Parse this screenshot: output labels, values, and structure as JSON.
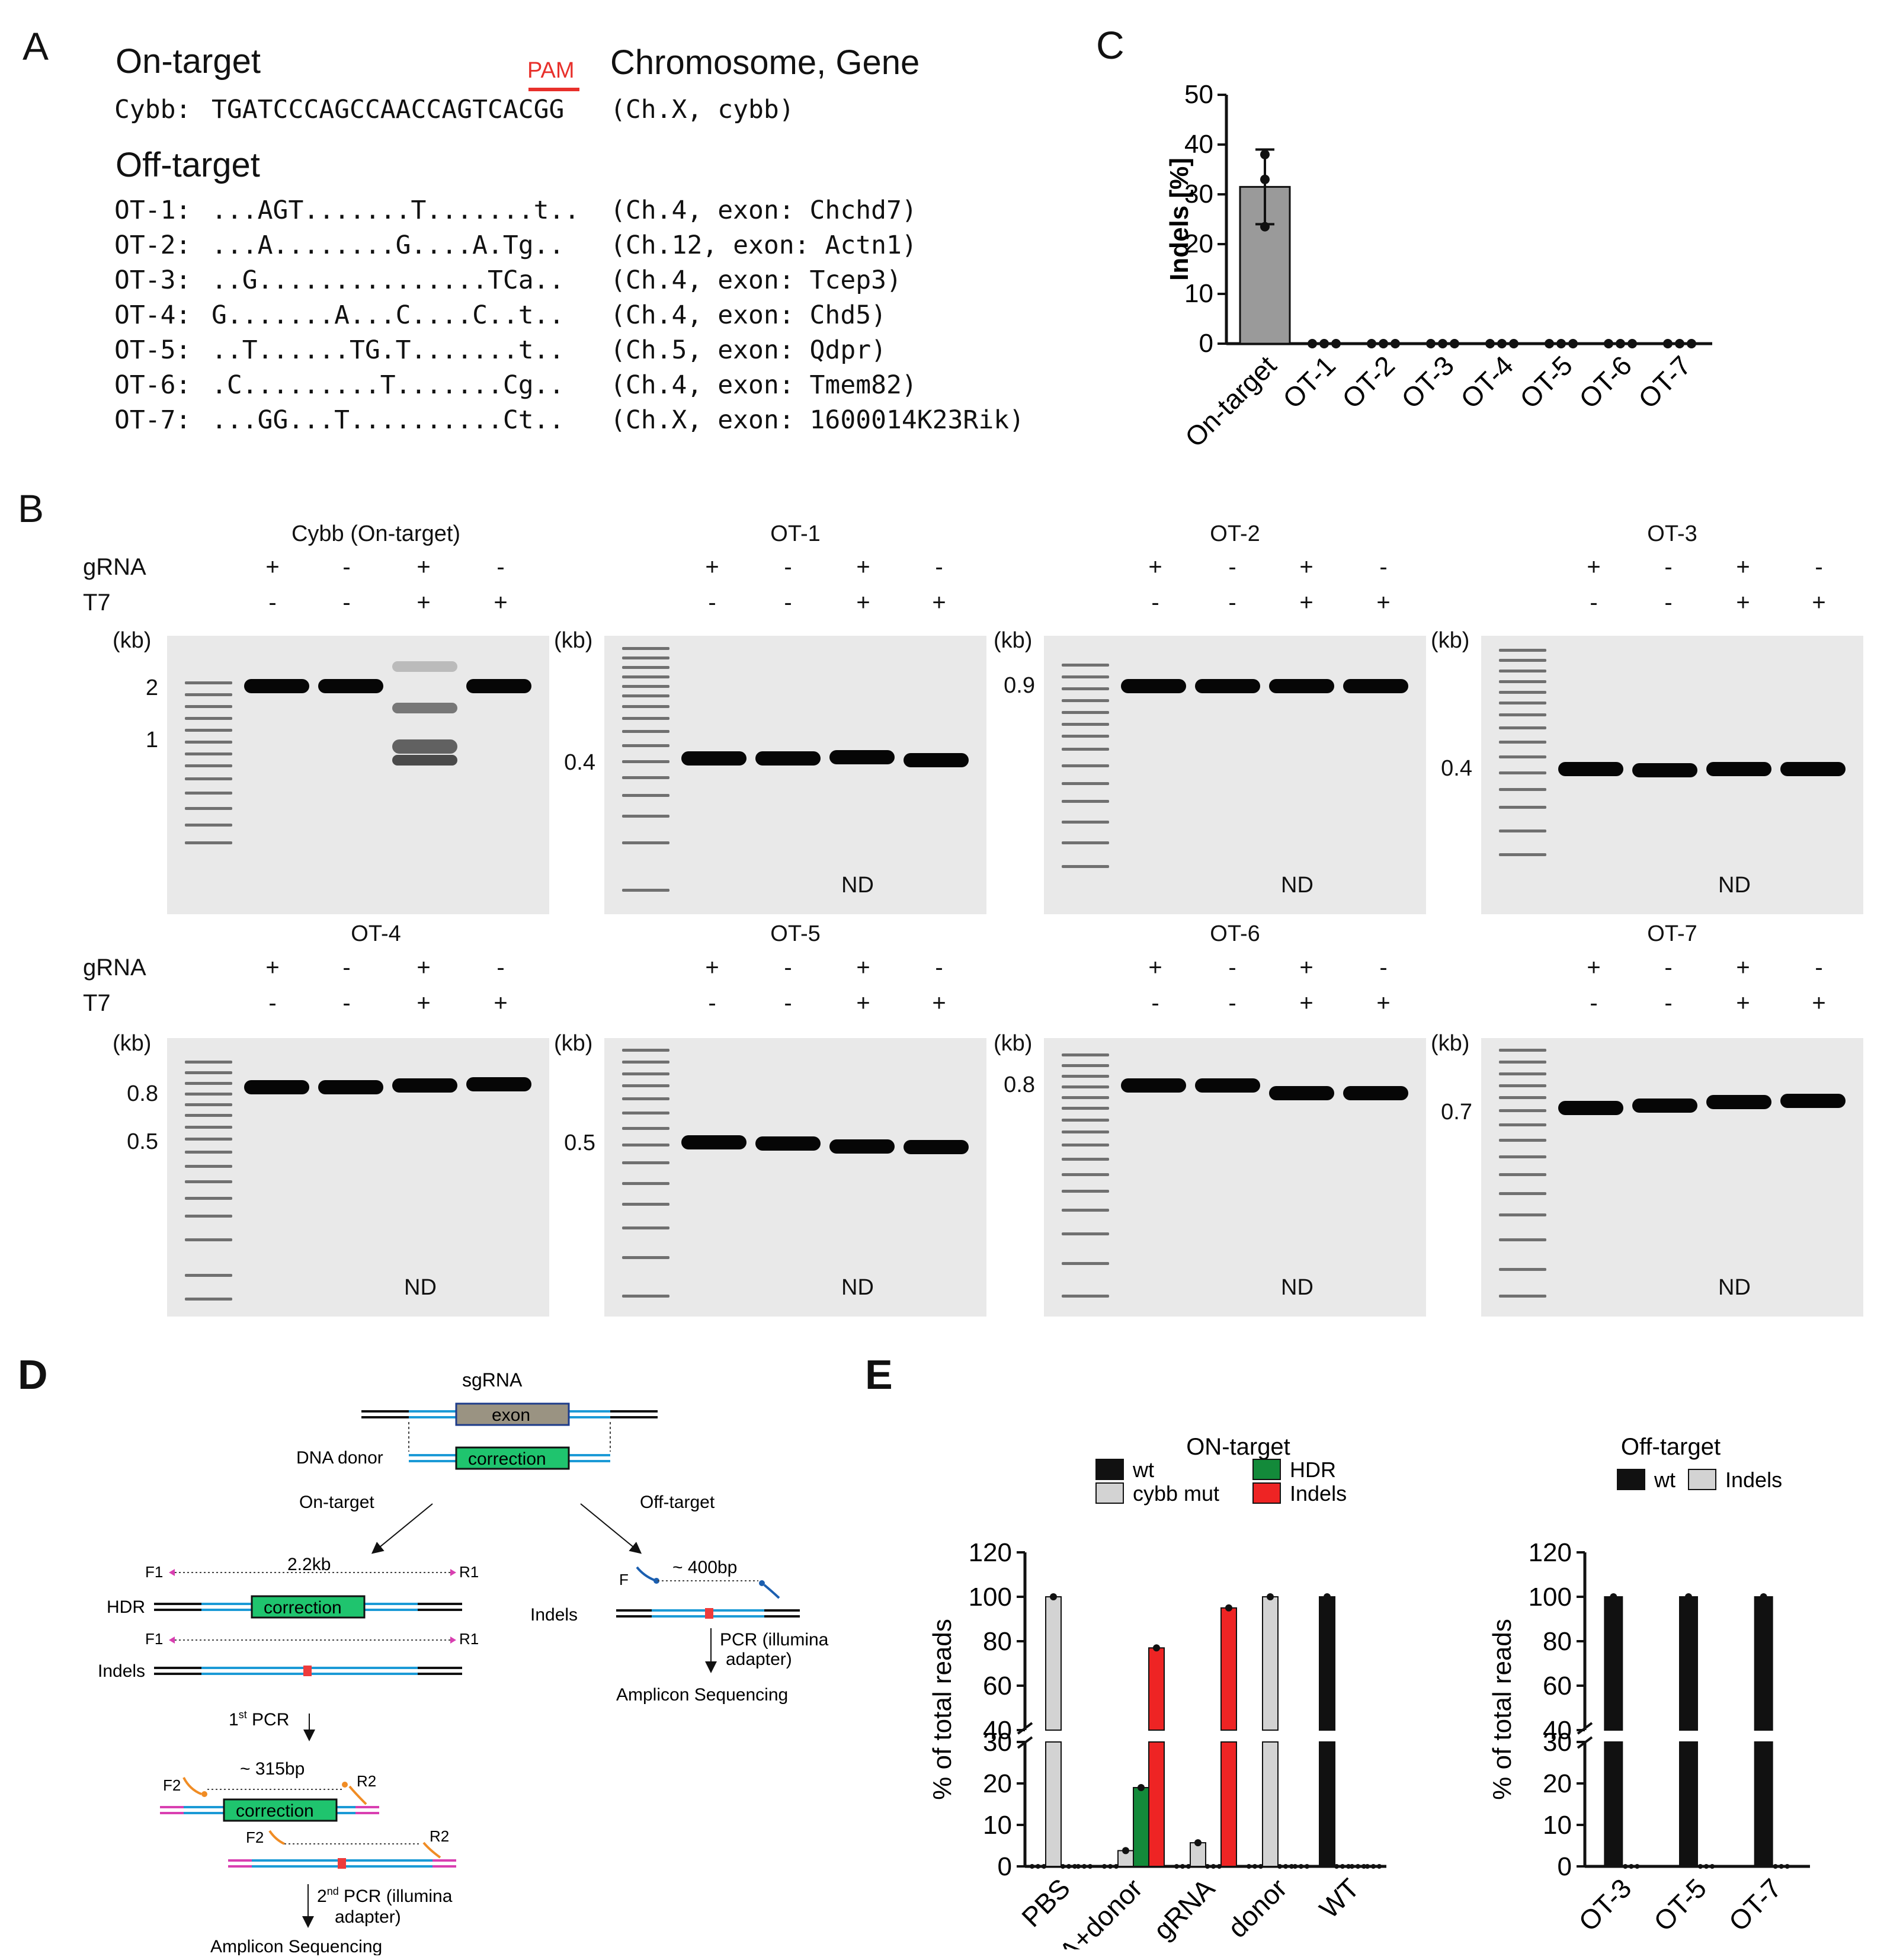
{
  "panel_a": {
    "label": "A",
    "on_target_title": "On-target",
    "pam_label": "PAM",
    "chrom_gene_title": "Chromosome, Gene",
    "cybb_row": {
      "name": "Cybb:",
      "seq": "TGATCCCAGCCAACCAGTCACGG",
      "loc": "(Ch.X, cybb)"
    },
    "off_target_title": "Off-target",
    "ot_rows": [
      {
        "name": "OT-1:",
        "seq": "...AGT.......T.......t..",
        "loc": "(Ch.4, exon: Chchd7)"
      },
      {
        "name": "OT-2:",
        "seq": "...A........G....A.Tg..",
        "loc": "(Ch.12, exon: Actn1)"
      },
      {
        "name": "OT-3:",
        "seq": "..G...............TCa..",
        "loc": "(Ch.4, exon: Tcep3)"
      },
      {
        "name": "OT-4:",
        "seq": "G.......A...C....C..t..",
        "loc": "(Ch.4, exon: Chd5)"
      },
      {
        "name": "OT-5:",
        "seq": "..T......TG.T.......t..",
        "loc": "(Ch.5, exon: Qdpr)"
      },
      {
        "name": "OT-6:",
        "seq": ".C.........T.......Cg..",
        "loc": "(Ch.4, exon: Tmem82)"
      },
      {
        "name": "OT-7:",
        "seq": "...GG...T..........Ct..",
        "loc": "(Ch.X, exon: 1600014K23Rik)"
      }
    ]
  },
  "panel_b": {
    "label": "B",
    "row_labels": {
      "grna": "gRNA",
      "t7": "T7",
      "kb": "(kb)"
    },
    "grna_signs": [
      "+",
      "-",
      "+",
      "-"
    ],
    "t7_signs": [
      "-",
      "-",
      "+",
      "+"
    ],
    "nd": "ND",
    "gels": [
      {
        "title": "Cybb (On-target)",
        "markers": [
          "2",
          "1"
        ],
        "nd": ""
      },
      {
        "title": "OT-1",
        "markers": [
          "0.4"
        ],
        "nd": "ND"
      },
      {
        "title": "OT-2",
        "markers": [
          "0.9"
        ],
        "nd": "ND"
      },
      {
        "title": "OT-3",
        "markers": [
          "0.4"
        ],
        "nd": "ND"
      },
      {
        "title": "OT-4",
        "markers": [
          "0.8",
          "0.5"
        ],
        "nd": "ND"
      },
      {
        "title": "OT-5",
        "markers": [
          "0.5"
        ],
        "nd": "ND"
      },
      {
        "title": "OT-6",
        "markers": [
          "0.8"
        ],
        "nd": "ND"
      },
      {
        "title": "OT-7",
        "markers": [
          "0.7"
        ],
        "nd": "ND"
      }
    ]
  },
  "panel_c": {
    "label": "C"
  },
  "panel_d": {
    "label": "D",
    "sgrna": "sgRNA",
    "exon": "exon",
    "dna_donor": "DNA donor",
    "correction": "correction",
    "on_target": "On-target",
    "off_target": "Off-target",
    "f1": "F1",
    "r1": "R1",
    "size_22": "2.2kb",
    "hdr": "HDR",
    "indels": "Indels",
    "first_pcr": "1",
    "first_pcr_sup": "st",
    "first_pcr_tail": " PCR",
    "f2": "F2",
    "r2": "R2",
    "size_315": "~ 315bp",
    "second_pcr": "2",
    "second_pcr_sup": "nd",
    "second_pcr_tail": " PCR (illumina",
    "adapter": "adapter)",
    "amplicon": "Amplicon Sequencing",
    "f": "F",
    "size_400": "~ 400bp",
    "pcr_illumina": "PCR (illumina",
    "adapter2": "adapter)",
    "amplicon2": "Amplicon Sequencing"
  },
  "panel_e": {
    "label": "E"
  },
  "chart_data": [
    {
      "type": "bar",
      "panel": "C",
      "categories": [
        "On-target",
        "OT-1",
        "OT-2",
        "OT-3",
        "OT-4",
        "OT-5",
        "OT-6",
        "OT-7"
      ],
      "values": [
        31.5,
        0,
        0,
        0,
        0,
        0,
        0,
        0
      ],
      "error": [
        7.5,
        0,
        0,
        0,
        0,
        0,
        0,
        0
      ],
      "points": [
        [
          38,
          33,
          23.5
        ],
        [
          0,
          0,
          0
        ],
        [
          0,
          0,
          0
        ],
        [
          0,
          0,
          0
        ],
        [
          0,
          0,
          0
        ],
        [
          0,
          0,
          0
        ],
        [
          0,
          0,
          0
        ],
        [
          0,
          0,
          0
        ]
      ],
      "ylabel": "Indels [%]",
      "ylim": [
        0,
        50
      ],
      "yticks": [
        0,
        10,
        20,
        30,
        40,
        50
      ],
      "color": "#9a9a9a"
    },
    {
      "type": "bar",
      "panel": "E",
      "title": "ON-target",
      "ylabel": "% of total reads",
      "categories": [
        "PBS",
        "gRNA+donor",
        "gRNA",
        "donor",
        "WT"
      ],
      "series": [
        {
          "name": "wt",
          "color": "#111111",
          "values": [
            0,
            0,
            0,
            0,
            100
          ]
        },
        {
          "name": "cybb mut",
          "color": "#d3d3d3",
          "values": [
            100,
            3.8,
            5.7,
            100,
            0.4
          ]
        },
        {
          "name": "HDR",
          "color": "#138a3a",
          "values": [
            0,
            19,
            0,
            0,
            0
          ]
        },
        {
          "name": "Indels",
          "color": "#ee2424",
          "values": [
            0,
            77,
            95,
            0,
            0
          ]
        }
      ],
      "axis_break": [
        30,
        40
      ],
      "yticks_low": [
        0,
        10,
        20,
        30
      ],
      "yticks_high": [
        40,
        60,
        80,
        100,
        120
      ],
      "legend": "top"
    },
    {
      "type": "bar",
      "panel": "E",
      "title": "Off-target",
      "ylabel": "% of total reads",
      "categories": [
        "OT-3",
        "OT-5",
        "OT-7"
      ],
      "series": [
        {
          "name": "wt",
          "color": "#111111",
          "values": [
            100,
            100,
            100
          ]
        },
        {
          "name": "Indels",
          "color": "#d3d3d3",
          "values": [
            0,
            0,
            0
          ]
        }
      ],
      "axis_break": [
        30,
        40
      ],
      "yticks_low": [
        0,
        10,
        20,
        30
      ],
      "yticks_high": [
        40,
        60,
        80,
        100,
        120
      ],
      "legend": "top"
    }
  ]
}
